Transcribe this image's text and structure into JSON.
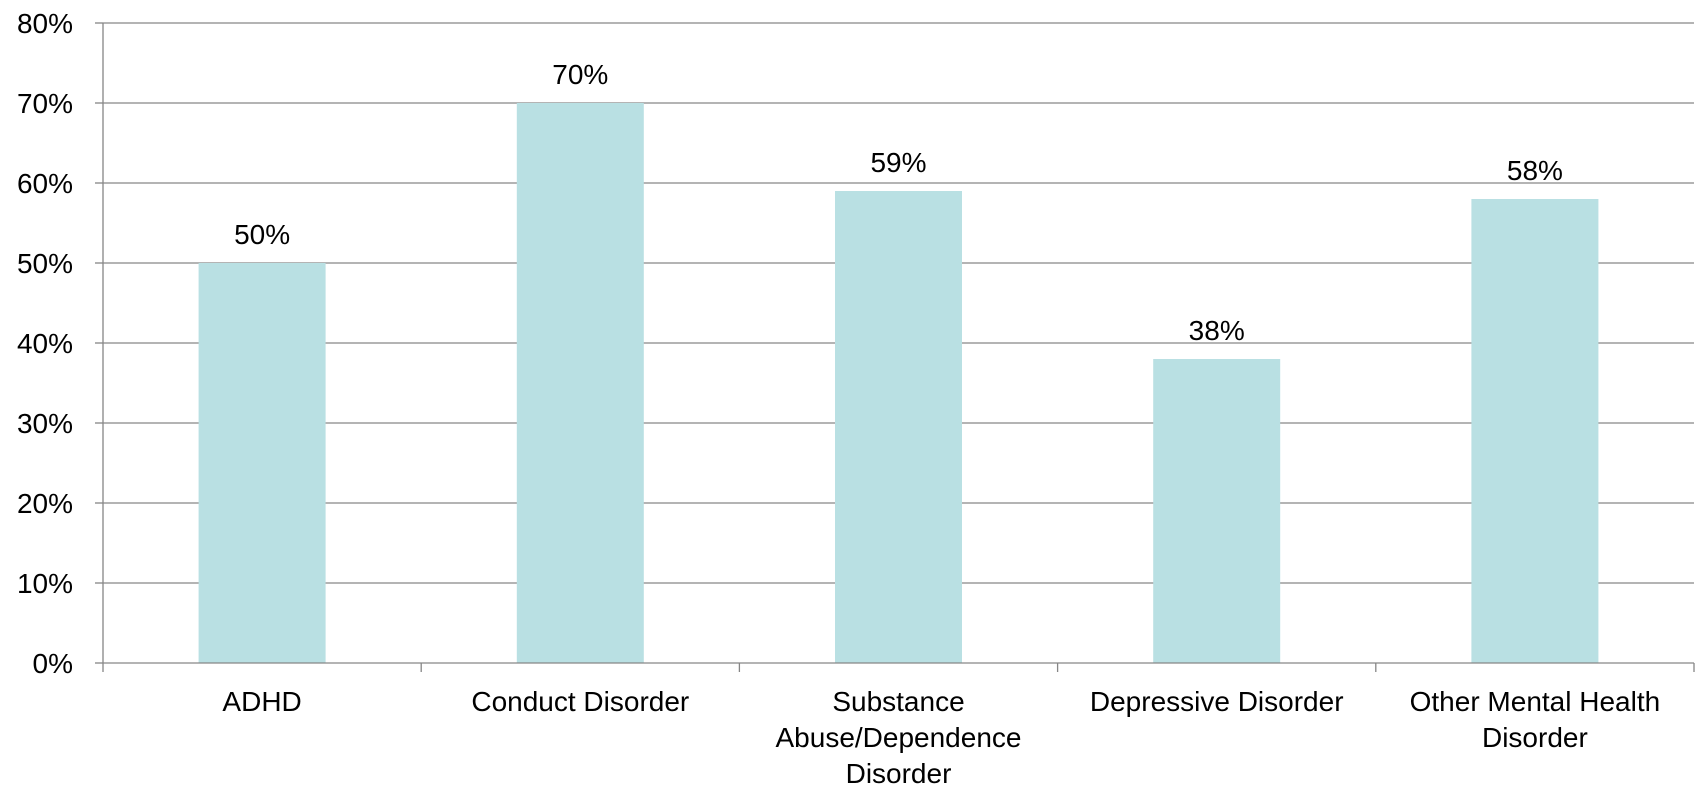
{
  "chart_data": {
    "type": "bar",
    "title": "",
    "xlabel": "",
    "ylabel": "",
    "categories": [
      [
        "ADHD"
      ],
      [
        "Conduct Disorder"
      ],
      [
        "Substance",
        "Abuse/Dependence",
        "Disorder"
      ],
      [
        "Depressive Disorder"
      ],
      [
        "Other Mental Health",
        "Disorder"
      ]
    ],
    "values": [
      50,
      70,
      59,
      38,
      58
    ],
    "data_labels": [
      "50%",
      "70%",
      "59%",
      "38%",
      "58%"
    ],
    "ylim": [
      0,
      80
    ],
    "y_ticks": [
      "0%",
      "10%",
      "20%",
      "30%",
      "40%",
      "50%",
      "60%",
      "70%",
      "80%"
    ],
    "grid": true,
    "legend": "none",
    "colors": {
      "bar": "#b9e0e3",
      "grid": "#868686",
      "axis": "#868686"
    }
  }
}
